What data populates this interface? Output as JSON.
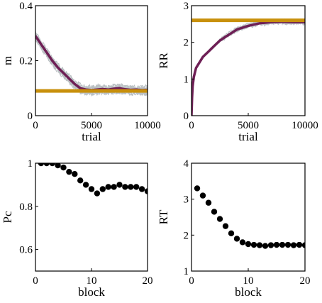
{
  "figure": {
    "colors": {
      "mean_line": "#6e1f55",
      "reference_line": "#c8900c",
      "simulation_lines": "#b9bfc2",
      "points": "#000000"
    }
  },
  "chart_data": [
    {
      "id": "m",
      "type": "line",
      "xlabel": "trial",
      "ylabel": "m",
      "xlim": [
        0,
        10000
      ],
      "ylim": [
        0,
        0.4
      ],
      "xticks": [
        0,
        5000,
        10000
      ],
      "yticks": [
        0,
        0.2,
        0.4
      ],
      "ytick_labels": [
        "0",
        "0.2",
        "0.4"
      ],
      "reference": 0.09,
      "series": [
        {
          "x": [
            0,
            500,
            1000,
            1500,
            2000,
            2500,
            3000,
            3500,
            4000,
            4500,
            5000,
            5500,
            6000,
            6500,
            7000,
            7500,
            8000,
            8500,
            9000,
            9500,
            10000
          ],
          "values": [
            0.29,
            0.26,
            0.23,
            0.2,
            0.175,
            0.155,
            0.135,
            0.115,
            0.1,
            0.095,
            0.093,
            0.095,
            0.097,
            0.095,
            0.098,
            0.1,
            0.096,
            0.094,
            0.095,
            0.093,
            0.094
          ]
        }
      ]
    },
    {
      "id": "rr",
      "type": "line",
      "xlabel": "trial",
      "ylabel": "RR",
      "xlim": [
        0,
        10000
      ],
      "ylim": [
        0,
        3
      ],
      "xticks": [
        0,
        5000,
        10000
      ],
      "yticks": [
        0,
        1,
        2,
        3
      ],
      "ytick_labels": [
        "0",
        "1",
        "2",
        "3"
      ],
      "reference": 2.6,
      "series": [
        {
          "x": [
            0,
            50,
            100,
            200,
            400,
            700,
            1000,
            1500,
            2000,
            2500,
            3000,
            3500,
            4000,
            5000,
            6000,
            7000,
            8000,
            9000,
            10000
          ],
          "values": [
            0,
            0.5,
            0.8,
            1.05,
            1.3,
            1.45,
            1.6,
            1.75,
            1.9,
            2.05,
            2.15,
            2.25,
            2.35,
            2.45,
            2.52,
            2.55,
            2.56,
            2.55,
            2.55
          ]
        }
      ]
    },
    {
      "id": "pc",
      "type": "scatter",
      "xlabel": "block",
      "ylabel": "Pc",
      "xlim": [
        0,
        20
      ],
      "ylim": [
        0.5,
        1.0
      ],
      "xticks": [
        0,
        10,
        20
      ],
      "yticks": [
        0.6,
        0.8,
        1.0
      ],
      "ytick_labels": [
        "0.6",
        "0.8",
        "1"
      ],
      "series": [
        {
          "x": [
            1,
            2,
            3,
            4,
            5,
            6,
            7,
            8,
            9,
            10,
            11,
            12,
            13,
            14,
            15,
            16,
            17,
            18,
            19,
            20
          ],
          "values": [
            1.0,
            1.0,
            1.0,
            0.99,
            0.98,
            0.96,
            0.95,
            0.92,
            0.9,
            0.88,
            0.86,
            0.88,
            0.89,
            0.89,
            0.9,
            0.89,
            0.89,
            0.89,
            0.88,
            0.87
          ]
        }
      ]
    },
    {
      "id": "rt",
      "type": "scatter",
      "xlabel": "block",
      "ylabel": "RT",
      "xlim": [
        0,
        20
      ],
      "ylim": [
        1,
        4
      ],
      "xticks": [
        0,
        10,
        20
      ],
      "yticks": [
        1,
        2,
        3,
        4
      ],
      "ytick_labels": [
        "1",
        "2",
        "3",
        "4"
      ],
      "series": [
        {
          "x": [
            1,
            2,
            3,
            4,
            5,
            6,
            7,
            8,
            9,
            10,
            11,
            12,
            13,
            14,
            15,
            16,
            17,
            18,
            19,
            20
          ],
          "values": [
            3.3,
            3.1,
            2.9,
            2.65,
            2.45,
            2.25,
            2.05,
            1.9,
            1.8,
            1.75,
            1.73,
            1.72,
            1.7,
            1.72,
            1.73,
            1.73,
            1.73,
            1.72,
            1.73,
            1.72
          ]
        }
      ]
    }
  ]
}
